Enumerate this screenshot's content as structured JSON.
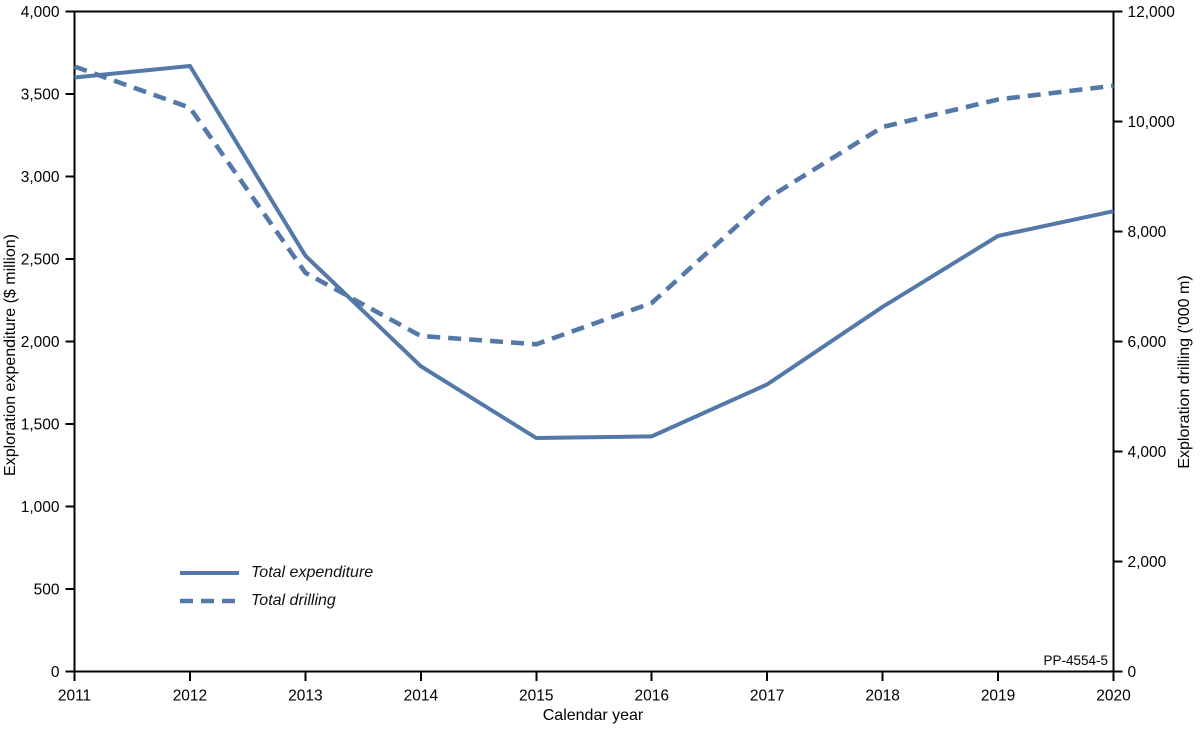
{
  "chart_data": {
    "type": "line",
    "title": "",
    "x": [
      2011,
      2012,
      2013,
      2014,
      2015,
      2016,
      2017,
      2018,
      2019,
      2020
    ],
    "xlabel": "Calendar year",
    "ylabel_left": "Exploration expenditure ($ million)",
    "ylabel_right": "Exploration drilling ('000 m)",
    "ylim_left": [
      0,
      4000
    ],
    "ylim_right": [
      0,
      12000
    ],
    "yticks_left": [
      0,
      500,
      1000,
      1500,
      2000,
      2500,
      3000,
      3500,
      4000
    ],
    "yticks_right": [
      0,
      2000,
      4000,
      6000,
      8000,
      10000,
      12000
    ],
    "grid": false,
    "legend_position": "inside lower-left",
    "series": [
      {
        "name": "Total expenditure",
        "axis": "left",
        "line_style": "solid",
        "values": [
          3600,
          3670,
          2520,
          1850,
          1415,
          1425,
          1740,
          2210,
          2640,
          2790
        ]
      },
      {
        "name": "Total drilling",
        "axis": "right",
        "line_style": "dashed",
        "values": [
          11000,
          10250,
          7250,
          6100,
          5950,
          6700,
          8600,
          9900,
          10400,
          10650
        ]
      }
    ]
  },
  "annotations": {
    "figure_id": "PP-4554-5"
  },
  "colors": {
    "series_blue": "#5478a8",
    "axis": "#000000",
    "background": "#ffffff"
  }
}
